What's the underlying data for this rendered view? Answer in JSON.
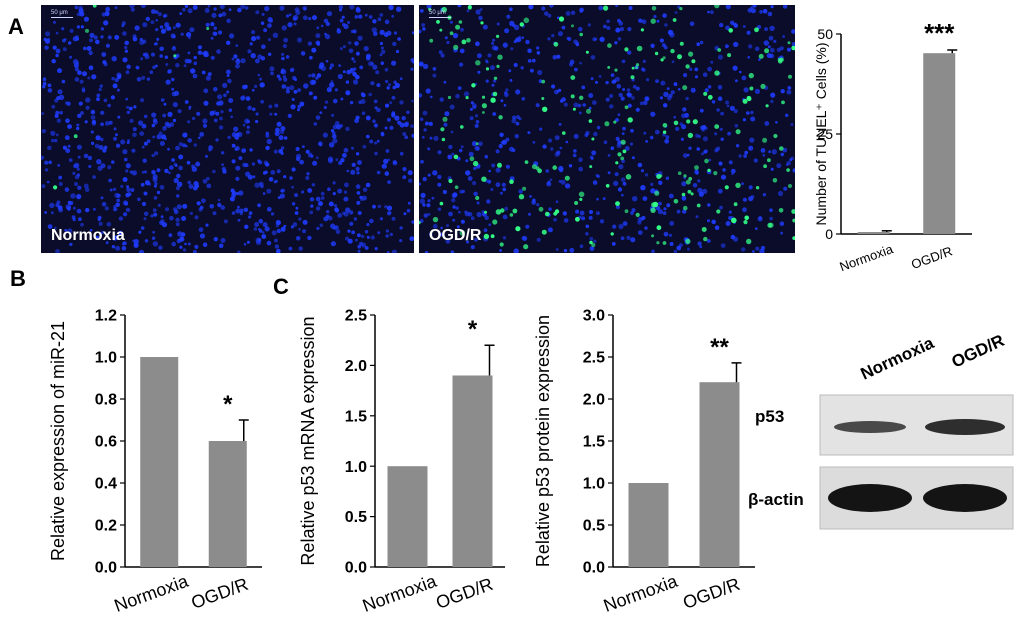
{
  "panels": {
    "A": "A",
    "B": "B",
    "C": "C"
  },
  "micrographs": [
    {
      "label": "Normoxia",
      "scale": "50 μm"
    },
    {
      "label": "OGD/R",
      "scale": "50 μm"
    }
  ],
  "colors": {
    "bar": "#8c8c8c",
    "nuclei": "#1f3cff",
    "tunel": "#33ff88",
    "background": "#0a0c2a"
  },
  "chart_data": [
    {
      "id": "tunel",
      "type": "bar",
      "categories": [
        "Normoxia",
        "OGD/R"
      ],
      "values": [
        0.5,
        45.2
      ],
      "errors": [
        0.3,
        0.8
      ],
      "ylabel": "Number of TUNEL⁺ Cells  (%)",
      "ylim": [
        0,
        50
      ],
      "yticks": [
        "0",
        "25",
        "50"
      ],
      "significance": [
        "",
        "***"
      ]
    },
    {
      "id": "mir21",
      "type": "bar",
      "categories": [
        "Normoxia",
        "OGD/R"
      ],
      "values": [
        1.0,
        0.6
      ],
      "errors": [
        0,
        0.1
      ],
      "ylabel": "Relative expression of miR-21",
      "ylim": [
        0,
        1.2
      ],
      "yticks": [
        "0.0",
        "0.2",
        "0.4",
        "0.6",
        "0.8",
        "1.0",
        "1.2"
      ],
      "significance": [
        "",
        "*"
      ]
    },
    {
      "id": "p53mrna",
      "type": "bar",
      "categories": [
        "Normoxia",
        "OGD/R"
      ],
      "values": [
        1.0,
        1.9
      ],
      "errors": [
        0,
        0.3
      ],
      "ylabel": "Relative p53 mRNA  expression",
      "ylim": [
        0,
        2.5
      ],
      "yticks": [
        "0.0",
        "0.5",
        "1.0",
        "1.5",
        "2.0",
        "2.5"
      ],
      "significance": [
        "",
        "*"
      ]
    },
    {
      "id": "p53protein",
      "type": "bar",
      "categories": [
        "Normoxia",
        "OGD/R"
      ],
      "values": [
        1.0,
        2.2
      ],
      "errors": [
        0,
        0.23
      ],
      "ylabel": "Relative p53 protein expression",
      "ylim": [
        0,
        3.0
      ],
      "yticks": [
        "0.0",
        "0.5",
        "1.0",
        "1.5",
        "2.0",
        "2.5",
        "3.0"
      ],
      "significance": [
        "",
        "**"
      ]
    }
  ],
  "western": {
    "lanes": [
      "Normoxia",
      "OGD/R"
    ],
    "rows": [
      "p53",
      "β-actin"
    ]
  }
}
